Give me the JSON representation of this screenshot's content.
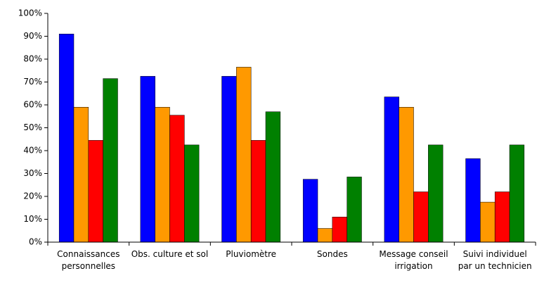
{
  "chart_data": {
    "type": "bar",
    "categories": [
      "Connaissances personnelles",
      "Obs. culture et sol",
      "Pluviomètre",
      "Sondes",
      "Message conseil irrigation",
      "Suivi individuel par un technicien"
    ],
    "series": [
      {
        "color": "#0000ff",
        "values": [
          91,
          72.5,
          72.5,
          27.5,
          63.5,
          36.5
        ]
      },
      {
        "color": "#ff9900",
        "values": [
          59,
          59,
          76.5,
          6,
          59,
          17.5
        ]
      },
      {
        "color": "#ff0000",
        "values": [
          44.5,
          55.5,
          44.5,
          11,
          22,
          22
        ]
      },
      {
        "color": "#008000",
        "values": [
          71.5,
          42.5,
          57,
          28.5,
          42.5,
          42.5
        ]
      }
    ],
    "ylim": [
      0,
      100
    ],
    "yticks": [
      {
        "value": 0,
        "label": "0%"
      },
      {
        "value": 10,
        "label": "10%"
      },
      {
        "value": 20,
        "label": "20%"
      },
      {
        "value": 30,
        "label": "30%"
      },
      {
        "value": 40,
        "label": "40%"
      },
      {
        "value": 50,
        "label": "50%"
      },
      {
        "value": 60,
        "label": "60%"
      },
      {
        "value": 70,
        "label": "70%"
      },
      {
        "value": 80,
        "label": "80%"
      },
      {
        "value": 90,
        "label": "90%"
      },
      {
        "value": 100,
        "label": "100%"
      }
    ],
    "grid": false
  }
}
